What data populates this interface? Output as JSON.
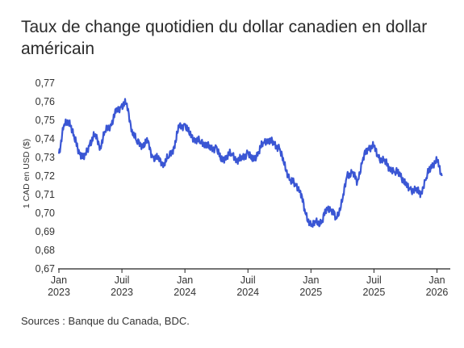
{
  "chart_data": {
    "type": "line",
    "title": "Taux de change quotidien du dollar canadien en dollar américain",
    "ylabel": "1 CAD en USD ($)",
    "xlabel": "",
    "ylim": [
      0.67,
      0.77
    ],
    "y_ticks": [
      "0,77",
      "0,76",
      "0,75",
      "0,74",
      "0,73",
      "0,72",
      "0,71",
      "0,70",
      "0,69",
      "0,68",
      "0,67"
    ],
    "x_ticks": [
      {
        "m": 0,
        "top": "Jan",
        "bottom": "2023"
      },
      {
        "m": 6,
        "top": "Juil",
        "bottom": "2023"
      },
      {
        "m": 12,
        "top": "Jan",
        "bottom": "2024"
      },
      {
        "m": 18,
        "top": "Juil",
        "bottom": "2024"
      },
      {
        "m": 24,
        "top": "Jan",
        "bottom": "2025"
      },
      {
        "m": 30,
        "top": "Juil",
        "bottom": "2025"
      },
      {
        "m": 36,
        "top": "Jan",
        "bottom": "2026"
      }
    ],
    "grid": false,
    "line_color": "#3a56d4",
    "series": [
      {
        "name": "",
        "x": [
          "2023-01-01",
          "2023-01-15",
          "2023-02-01",
          "2023-02-15",
          "2023-03-01",
          "2023-03-15",
          "2023-04-01",
          "2023-04-15",
          "2023-05-01",
          "2023-05-15",
          "2023-06-01",
          "2023-06-15",
          "2023-07-01",
          "2023-07-15",
          "2023-08-01",
          "2023-08-15",
          "2023-09-01",
          "2023-09-15",
          "2023-10-01",
          "2023-10-15",
          "2023-11-01",
          "2023-11-15",
          "2023-12-01",
          "2023-12-15",
          "2024-01-01",
          "2024-01-15",
          "2024-02-01",
          "2024-02-15",
          "2024-03-01",
          "2024-03-15",
          "2024-04-01",
          "2024-04-15",
          "2024-05-01",
          "2024-05-15",
          "2024-06-01",
          "2024-06-15",
          "2024-07-01",
          "2024-07-15",
          "2024-08-01",
          "2024-08-15",
          "2024-09-01",
          "2024-09-15",
          "2024-10-01",
          "2024-10-15",
          "2024-11-01",
          "2024-11-15",
          "2024-12-01",
          "2024-12-15",
          "2025-01-01",
          "2025-01-15",
          "2025-02-01",
          "2025-02-15",
          "2025-03-01",
          "2025-03-15",
          "2025-04-01",
          "2025-04-15",
          "2025-05-01",
          "2025-05-15",
          "2025-06-01",
          "2025-06-15",
          "2025-07-01",
          "2025-07-15",
          "2025-08-01",
          "2025-08-15",
          "2025-09-01",
          "2025-09-15",
          "2025-10-01",
          "2025-10-15",
          "2025-11-01",
          "2025-11-15",
          "2025-12-01",
          "2025-12-15",
          "2026-01-01",
          "2026-01-15"
        ],
        "values": [
          0.732,
          0.747,
          0.75,
          0.74,
          0.733,
          0.729,
          0.738,
          0.742,
          0.736,
          0.744,
          0.748,
          0.754,
          0.758,
          0.759,
          0.745,
          0.738,
          0.737,
          0.738,
          0.73,
          0.729,
          0.727,
          0.73,
          0.736,
          0.746,
          0.748,
          0.742,
          0.74,
          0.738,
          0.738,
          0.734,
          0.736,
          0.728,
          0.731,
          0.732,
          0.729,
          0.729,
          0.733,
          0.728,
          0.733,
          0.738,
          0.74,
          0.737,
          0.735,
          0.726,
          0.718,
          0.716,
          0.712,
          0.7,
          0.693,
          0.695,
          0.695,
          0.703,
          0.702,
          0.697,
          0.706,
          0.72,
          0.722,
          0.717,
          0.73,
          0.735,
          0.736,
          0.73,
          0.728,
          0.725,
          0.722,
          0.722,
          0.715,
          0.713,
          0.712,
          0.711,
          0.719,
          0.726,
          0.728,
          0.72
        ]
      }
    ]
  },
  "source": "Sources : Banque du Canada, BDC."
}
